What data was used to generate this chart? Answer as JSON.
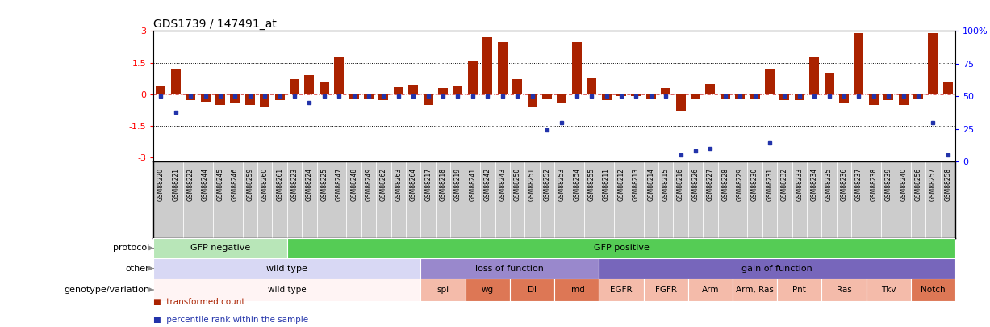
{
  "title": "GDS1739 / 147491_at",
  "samples": [
    "GSM88220",
    "GSM88221",
    "GSM88222",
    "GSM88244",
    "GSM88245",
    "GSM88246",
    "GSM88259",
    "GSM88260",
    "GSM88261",
    "GSM88223",
    "GSM88224",
    "GSM88225",
    "GSM88247",
    "GSM88248",
    "GSM88249",
    "GSM88262",
    "GSM88263",
    "GSM88264",
    "GSM88217",
    "GSM88218",
    "GSM88219",
    "GSM88241",
    "GSM88242",
    "GSM88243",
    "GSM88250",
    "GSM88251",
    "GSM88252",
    "GSM88253",
    "GSM88254",
    "GSM88255",
    "GSM88211",
    "GSM88212",
    "GSM88213",
    "GSM88214",
    "GSM88215",
    "GSM88216",
    "GSM88226",
    "GSM88227",
    "GSM88228",
    "GSM88229",
    "GSM88230",
    "GSM88231",
    "GSM88232",
    "GSM88233",
    "GSM88234",
    "GSM88235",
    "GSM88236",
    "GSM88237",
    "GSM88238",
    "GSM88239",
    "GSM88240",
    "GSM88256",
    "GSM88257",
    "GSM88258"
  ],
  "bar_values": [
    0.4,
    1.2,
    -0.3,
    -0.35,
    -0.5,
    -0.4,
    -0.5,
    -0.6,
    -0.3,
    0.7,
    0.9,
    0.6,
    1.8,
    -0.2,
    -0.2,
    -0.3,
    0.35,
    0.45,
    -0.5,
    0.3,
    0.4,
    1.6,
    2.7,
    2.5,
    0.7,
    -0.6,
    -0.2,
    -0.4,
    2.5,
    0.8,
    -0.3,
    -0.1,
    -0.1,
    -0.2,
    0.3,
    -0.8,
    -0.2,
    0.5,
    -0.2,
    -0.2,
    -0.2,
    1.2,
    -0.3,
    -0.3,
    1.8,
    1.0,
    -0.4,
    2.9,
    -0.5,
    -0.3,
    -0.5,
    -0.2,
    2.9,
    0.6
  ],
  "dot_percentiles": [
    50,
    38,
    50,
    50,
    50,
    50,
    50,
    50,
    50,
    50,
    45,
    50,
    50,
    50,
    50,
    50,
    50,
    50,
    50,
    50,
    50,
    50,
    50,
    50,
    50,
    50,
    24,
    30,
    50,
    50,
    50,
    50,
    50,
    50,
    50,
    5,
    8,
    10,
    50,
    50,
    50,
    14,
    50,
    50,
    50,
    50,
    50,
    50,
    50,
    50,
    50,
    50,
    30,
    5
  ],
  "protocol_groups": [
    {
      "label": "GFP negative",
      "start": 0,
      "end": 9,
      "color": "#b8e6b8"
    },
    {
      "label": "GFP positive",
      "start": 9,
      "end": 54,
      "color": "#55cc55"
    }
  ],
  "other_groups": [
    {
      "label": "wild type",
      "start": 0,
      "end": 18,
      "color": "#d8d8f4"
    },
    {
      "label": "loss of function",
      "start": 18,
      "end": 30,
      "color": "#9988cc"
    },
    {
      "label": "gain of function",
      "start": 30,
      "end": 54,
      "color": "#7766bb"
    }
  ],
  "genotype_groups": [
    {
      "label": "wild type",
      "start": 0,
      "end": 18,
      "color": "#fff4f4"
    },
    {
      "label": "spi",
      "start": 18,
      "end": 21,
      "color": "#f4bbaa"
    },
    {
      "label": "wg",
      "start": 21,
      "end": 24,
      "color": "#dd7755"
    },
    {
      "label": "Dl",
      "start": 24,
      "end": 27,
      "color": "#dd7755"
    },
    {
      "label": "lmd",
      "start": 27,
      "end": 30,
      "color": "#dd7755"
    },
    {
      "label": "EGFR",
      "start": 30,
      "end": 33,
      "color": "#f4bbaa"
    },
    {
      "label": "FGFR",
      "start": 33,
      "end": 36,
      "color": "#f4bbaa"
    },
    {
      "label": "Arm",
      "start": 36,
      "end": 39,
      "color": "#f4bbaa"
    },
    {
      "label": "Arm, Ras",
      "start": 39,
      "end": 42,
      "color": "#f4bbaa"
    },
    {
      "label": "Pnt",
      "start": 42,
      "end": 45,
      "color": "#f4bbaa"
    },
    {
      "label": "Ras",
      "start": 45,
      "end": 48,
      "color": "#f4bbaa"
    },
    {
      "label": "Tkv",
      "start": 48,
      "end": 51,
      "color": "#f4bbaa"
    },
    {
      "label": "Notch",
      "start": 51,
      "end": 54,
      "color": "#dd7755"
    }
  ],
  "ylim_main": [
    -3.2,
    3.0
  ],
  "ylim_extended": [
    -3.2,
    3.0
  ],
  "yticks_left": [
    -3,
    -1.5,
    0,
    1.5,
    3
  ],
  "yticks_right_pct": [
    0,
    25,
    50,
    75,
    100
  ],
  "hlines": [
    1.5,
    -1.5
  ],
  "bar_color": "#aa2200",
  "dot_color": "#2233aa",
  "sample_label_bg": "#dddddd",
  "sample_label_border": "#888888"
}
